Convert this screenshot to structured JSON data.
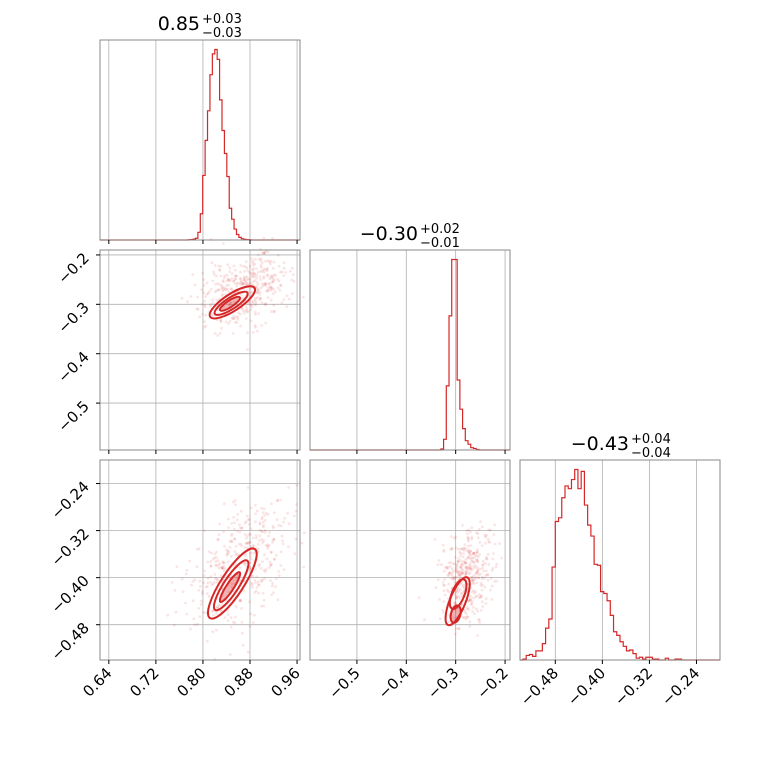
{
  "chart_data": {
    "type": "corner",
    "color": "#d62728",
    "grid": true,
    "panels": [
      {
        "id": "hist-p0",
        "kind": "histogram",
        "title": {
          "median": "0.85",
          "plus": "+0.03",
          "minus": "−0.03"
        },
        "xlim": [
          0.625,
          0.965
        ],
        "xticks": [],
        "yticks": [],
        "bins": {
          "start": 0.775,
          "width": 0.0041,
          "counts": [
            1,
            2,
            4,
            8,
            35,
            120,
            295,
            455,
            590,
            755,
            850,
            870,
            825,
            640,
            500,
            395,
            290,
            145,
            95,
            50,
            25,
            12,
            6,
            3,
            2,
            1
          ]
        }
      },
      {
        "id": "scatter-p0-p1",
        "kind": "scatter",
        "xlim": [
          0.625,
          0.965
        ],
        "ylim": [
          -0.595,
          -0.19
        ],
        "xticks": [],
        "yticks": [
          {
            "value": -0.2,
            "label": "−0.2"
          },
          {
            "value": -0.3,
            "label": "−0.3"
          },
          {
            "value": -0.4,
            "label": "−0.4"
          },
          {
            "value": -0.5,
            "label": "−0.5"
          }
        ],
        "trend": {
          "x": [
            0.78,
            0.96
          ],
          "y": [
            -0.33,
            -0.215
          ],
          "spread": 0.008
        },
        "contours": [
          {
            "cx": 0.85,
            "cy": -0.296,
            "rx": 0.045,
            "ry": 0.009,
            "angle_deg": -33
          },
          {
            "cx": 0.848,
            "cy": -0.298,
            "rx": 0.033,
            "ry": 0.006,
            "angle_deg": -33
          },
          {
            "cx": 0.846,
            "cy": -0.299,
            "rx": 0.02,
            "ry": 0.0035,
            "angle_deg": -33
          }
        ]
      },
      {
        "id": "hist-p1",
        "kind": "histogram",
        "title": {
          "median": "−0.30",
          "plus": "+0.02",
          "minus": "−0.01"
        },
        "xlim": [
          -0.595,
          -0.19
        ],
        "xticks": [],
        "yticks": [],
        "bins": {
          "start": -0.33,
          "width": 0.0055,
          "counts": [
            5,
            55,
            330,
            690,
            980,
            980,
            360,
            210,
            110,
            48,
            30,
            12,
            8,
            3
          ]
        }
      },
      {
        "id": "scatter-p0-p2",
        "kind": "scatter",
        "xlim": [
          0.625,
          0.965
        ],
        "ylim": [
          -0.54,
          -0.2
        ],
        "xticks": [
          {
            "value": 0.64,
            "label": "0.64"
          },
          {
            "value": 0.72,
            "label": "0.72"
          },
          {
            "value": 0.8,
            "label": "0.80"
          },
          {
            "value": 0.88,
            "label": "0.88"
          },
          {
            "value": 0.96,
            "label": "0.96"
          }
        ],
        "yticks": [
          {
            "value": -0.24,
            "label": "−0.24"
          },
          {
            "value": -0.32,
            "label": "−0.32"
          },
          {
            "value": -0.4,
            "label": "−0.40"
          },
          {
            "value": -0.48,
            "label": "−0.48"
          }
        ],
        "trend": {
          "x": [
            0.78,
            0.955
          ],
          "y": [
            -0.52,
            -0.24
          ],
          "spread": 0.01
        },
        "contours": [
          {
            "cx": 0.85,
            "cy": -0.41,
            "rx": 0.07,
            "ry": 0.012,
            "angle_deg": -57
          },
          {
            "cx": 0.848,
            "cy": -0.413,
            "rx": 0.05,
            "ry": 0.008,
            "angle_deg": -57
          },
          {
            "cx": 0.846,
            "cy": -0.416,
            "rx": 0.03,
            "ry": 0.004,
            "angle_deg": -57
          }
        ]
      },
      {
        "id": "scatter-p1-p2",
        "kind": "scatter",
        "xlim": [
          -0.595,
          -0.19
        ],
        "ylim": [
          -0.54,
          -0.2
        ],
        "xticks": [
          {
            "value": -0.5,
            "label": "−0.5"
          },
          {
            "value": -0.4,
            "label": "−0.4"
          },
          {
            "value": -0.3,
            "label": "−0.3"
          },
          {
            "value": -0.2,
            "label": "−0.2"
          }
        ],
        "yticks": [],
        "trend": {
          "x": [
            -0.31,
            -0.25
          ],
          "y": [
            -0.5,
            -0.3
          ],
          "spread": 0.006
        },
        "contours": [
          {
            "cx": -0.296,
            "cy": -0.44,
            "rx": 0.052,
            "ry": 0.01,
            "angle_deg": -68
          },
          {
            "cx": -0.295,
            "cy": -0.428,
            "rx": 0.032,
            "ry": 0.008,
            "angle_deg": -68
          },
          {
            "cx": -0.3,
            "cy": -0.462,
            "rx": 0.018,
            "ry": 0.006,
            "angle_deg": -75
          }
        ]
      },
      {
        "id": "hist-p2",
        "kind": "histogram",
        "title": {
          "median": "−0.43",
          "plus": "+0.04",
          "minus": "−0.04"
        },
        "xlim": [
          -0.54,
          -0.2
        ],
        "xticks": [
          {
            "value": -0.48,
            "label": "−0.48"
          },
          {
            "value": -0.4,
            "label": "−0.40"
          },
          {
            "value": -0.32,
            "label": "−0.32"
          },
          {
            "value": -0.24,
            "label": "−0.24"
          }
        ],
        "yticks": [],
        "bins": {
          "start": -0.535,
          "width": 0.0055,
          "counts": [
            1,
            5,
            6,
            4,
            10,
            10,
            18,
            35,
            45,
            102,
            152,
            156,
            178,
            191,
            188,
            198,
            209,
            188,
            207,
            170,
            148,
            136,
            105,
            104,
            75,
            73,
            65,
            49,
            31,
            27,
            20,
            15,
            10,
            11,
            7,
            2,
            3,
            1,
            3,
            3,
            1,
            1,
            0,
            0,
            2,
            0,
            0,
            1,
            1,
            0,
            0,
            0
          ]
        }
      }
    ]
  }
}
